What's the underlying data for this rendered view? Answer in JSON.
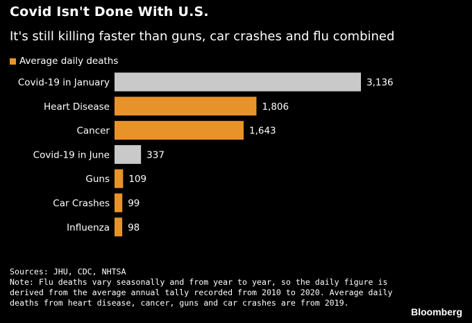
{
  "colors": {
    "background": "#000000",
    "covid_bar": "#c9c9c9",
    "other_bar": "#e8932a",
    "text": "#ffffff"
  },
  "chart_data": {
    "type": "bar",
    "orientation": "horizontal",
    "title": "Covid Isn't Done With U.S.",
    "subtitle": "It's still killing faster than guns, car crashes and flu combined",
    "legend": [
      "Average daily deaths"
    ],
    "categories": [
      "Covid-19 in January",
      "Heart Disease",
      "Cancer",
      "Covid-19 in June",
      "Guns",
      "Car Crashes",
      "Influenza"
    ],
    "values": [
      3136,
      1806,
      1643,
      337,
      109,
      99,
      98
    ],
    "value_labels": [
      "3,136",
      "1,806",
      "1,643",
      "337",
      "109",
      "99",
      "98"
    ],
    "bar_colors": [
      "covid",
      "other",
      "other",
      "covid",
      "other",
      "other",
      "other"
    ],
    "xlim": [
      0,
      3136
    ],
    "grid": false
  },
  "footer": {
    "sources": "Sources: JHU, CDC, NHTSA",
    "note": "Note: Flu deaths vary seasonally and from year to year, so the daily figure is derived from the average annual tally recorded from 2010 to 2020. Average daily deaths from heart disease, cancer, guns and car crashes are from 2019."
  },
  "brand": "Bloomberg"
}
